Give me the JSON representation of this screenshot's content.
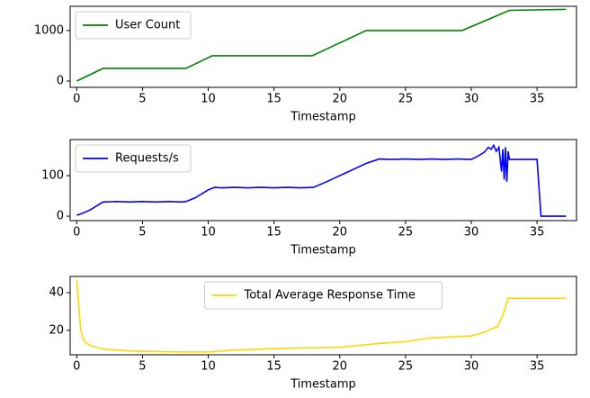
{
  "chart_data": [
    {
      "type": "line",
      "x": [
        0,
        2,
        8.3,
        10.3,
        17.9,
        22,
        29.3,
        32.9,
        37.2
      ],
      "series": [
        {
          "name": "User Count",
          "color": "#008000",
          "values": [
            0,
            250,
            250,
            500,
            500,
            1000,
            1000,
            1400,
            1420
          ]
        }
      ],
      "xlabel": "Timestamp",
      "xlim": [
        -0.5,
        38
      ],
      "xticks": [
        0,
        5,
        10,
        15,
        20,
        25,
        30,
        35
      ],
      "ylim": [
        -125,
        1480
      ],
      "yticks": [
        0,
        1000
      ],
      "legend": "upper left"
    },
    {
      "type": "line",
      "x": [
        0,
        0.5,
        1,
        1.5,
        2,
        3,
        4,
        5,
        6,
        7,
        8,
        8.3,
        9,
        9.5,
        10,
        10.5,
        11,
        12,
        13,
        14,
        15,
        16,
        17,
        18,
        19,
        20,
        21,
        22,
        23,
        24,
        25,
        26,
        27,
        28,
        29,
        30,
        30.5,
        31,
        31.3,
        31.5,
        31.7,
        31.9,
        32.1,
        32.3,
        32.4,
        32.5,
        32.6,
        32.7,
        32.8,
        32.9,
        33,
        34,
        35,
        35.3,
        36,
        37.2
      ],
      "series": [
        {
          "name": "Requests/s",
          "color": "#0000ff",
          "values": [
            2,
            8,
            15,
            25,
            35,
            36,
            35,
            36,
            35,
            36,
            35,
            36,
            45,
            55,
            65,
            71,
            70,
            71,
            70,
            71,
            70,
            71,
            70,
            71,
            85,
            100,
            115,
            130,
            141,
            140,
            141,
            140,
            141,
            140,
            141,
            140,
            148,
            158,
            170,
            165,
            175,
            160,
            170,
            110,
            165,
            90,
            170,
            85,
            160,
            140,
            140,
            140,
            140,
            0,
            0,
            0
          ]
        }
      ],
      "xlabel": "Timestamp",
      "xlim": [
        -0.5,
        38
      ],
      "xticks": [
        0,
        5,
        10,
        15,
        20,
        25,
        30,
        35
      ],
      "ylim": [
        -11,
        189
      ],
      "yticks": [
        0,
        100
      ],
      "legend": "upper left"
    },
    {
      "type": "line",
      "x": [
        0,
        0.3,
        0.6,
        1,
        2,
        4,
        8,
        10,
        12,
        16,
        20,
        23,
        25,
        27,
        30,
        31,
        32,
        32.4,
        32.6,
        32.8,
        37.2
      ],
      "series": [
        {
          "name": "Total Average Response Time",
          "color": "#ffd700",
          "values": [
            47,
            20,
            14,
            12,
            10,
            9,
            8.5,
            8.5,
            9.5,
            10.5,
            11,
            13,
            14,
            16,
            17,
            19,
            22,
            28,
            32,
            37,
            37
          ]
        }
      ],
      "xlabel": "Timestamp",
      "xlim": [
        -0.5,
        38
      ],
      "xticks": [
        0,
        5,
        10,
        15,
        20,
        25,
        30,
        35
      ],
      "ylim": [
        7,
        48.6
      ],
      "yticks": [
        20,
        40
      ],
      "legend": "upper center"
    }
  ]
}
